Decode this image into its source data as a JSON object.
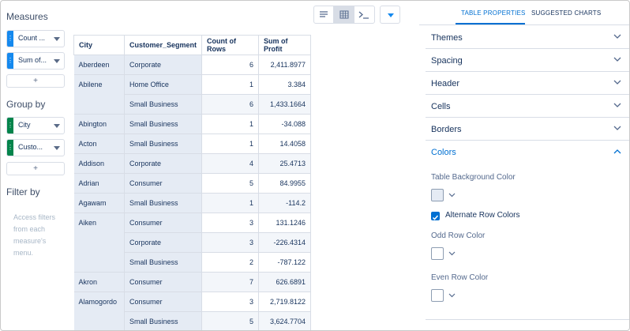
{
  "left": {
    "measures_title": "Measures",
    "measures": [
      {
        "label": "Count ...",
        "grip": "⋮"
      },
      {
        "label": "Sum of...",
        "grip": "⋮"
      }
    ],
    "groupby_title": "Group by",
    "groupby": [
      {
        "label": "City",
        "grip": "⋮"
      },
      {
        "label": "Custo...",
        "grip": "⋮"
      }
    ],
    "add_label": "+",
    "filter_title": "Filter by",
    "filter_hint": "Access filters from each measure's menu."
  },
  "table": {
    "headers": [
      "City",
      "Customer_Segment",
      "Count of Rows",
      "Sum of Profit"
    ],
    "rows": [
      {
        "city": "Aberdeen",
        "segment": "Corporate",
        "count": "6",
        "profit": "2,411.8977"
      },
      {
        "city": "Abilene",
        "segment": "Home Office",
        "count": "1",
        "profit": "3.384"
      },
      {
        "city": "",
        "segment": "Small Business",
        "count": "6",
        "profit": "1,433.1664"
      },
      {
        "city": "Abington",
        "segment": "Small Business",
        "count": "1",
        "profit": "-34.088"
      },
      {
        "city": "Acton",
        "segment": "Small Business",
        "count": "1",
        "profit": "14.4058"
      },
      {
        "city": "Addison",
        "segment": "Corporate",
        "count": "4",
        "profit": "25.4713"
      },
      {
        "city": "Adrian",
        "segment": "Consumer",
        "count": "5",
        "profit": "84.9955"
      },
      {
        "city": "Agawam",
        "segment": "Small Business",
        "count": "1",
        "profit": "-114.2"
      },
      {
        "city": "Aiken",
        "segment": "Consumer",
        "count": "3",
        "profit": "131.1246"
      },
      {
        "city": "",
        "segment": "Corporate",
        "count": "3",
        "profit": "-226.4314"
      },
      {
        "city": "",
        "segment": "Small Business",
        "count": "2",
        "profit": "-787.122"
      },
      {
        "city": "Akron",
        "segment": "Consumer",
        "count": "7",
        "profit": "626.6891"
      },
      {
        "city": "Alamogordo",
        "segment": "Consumer",
        "count": "3",
        "profit": "2,719.8122"
      },
      {
        "city": "",
        "segment": "Small Business",
        "count": "5",
        "profit": "3,624.7704"
      }
    ]
  },
  "right": {
    "tabs": [
      "TABLE PROPERTIES",
      "SUGGESTED CHARTS"
    ],
    "sections": [
      "Themes",
      "Spacing",
      "Header",
      "Cells",
      "Borders",
      "Colors"
    ],
    "table_bg_label": "Table Background Color",
    "alternate_label": "Alternate Row Colors",
    "odd_label": "Odd Row Color",
    "even_label": "Even Row Color"
  },
  "colors": {
    "accent": "#0070d2",
    "measure_pill": "#1589ee",
    "group_pill": "#04844b",
    "group_column_bg": "#e5ebf4"
  }
}
